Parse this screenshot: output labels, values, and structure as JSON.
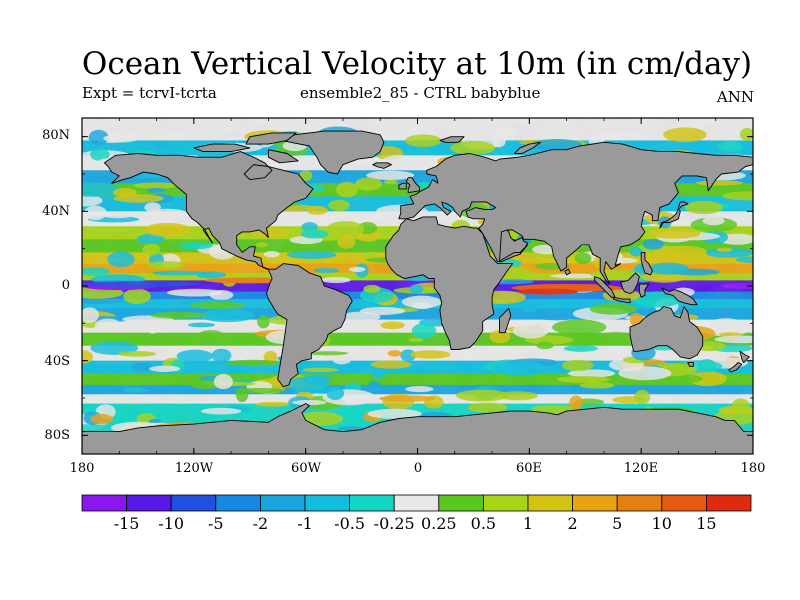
{
  "title": "Ocean Vertical Velocity at 10m (in cm/day)",
  "subtitle_left": "Expt = tcrvI-tcrta",
  "subtitle_center": "ensemble2_85 - CTRL babyblue",
  "subtitle_right": "ANN",
  "lat_labels": [
    "80N",
    "40N",
    "0",
    "40S",
    "80S"
  ],
  "lon_labels": [
    "180",
    "120W",
    "60W",
    "0",
    "60E",
    "120E",
    "180"
  ],
  "colorbar": {
    "labels": [
      "-15",
      "-10",
      "-5",
      "-2",
      "-1",
      "-0.5",
      "-0.25",
      "0.25",
      "0.5",
      "1",
      "2",
      "5",
      "10",
      "15"
    ],
    "colors": [
      "#8b17f0",
      "#5a18e6",
      "#1f50e0",
      "#1889e3",
      "#19a6e0",
      "#12bede",
      "#11d6c4",
      "#e8e8e8",
      "#58c81e",
      "#a7d416",
      "#d4c410",
      "#eaa212",
      "#e57f10",
      "#e65a10",
      "#e02a10"
    ]
  },
  "colors": {
    "land": "#9a9a9a",
    "coast": "#000000"
  }
}
